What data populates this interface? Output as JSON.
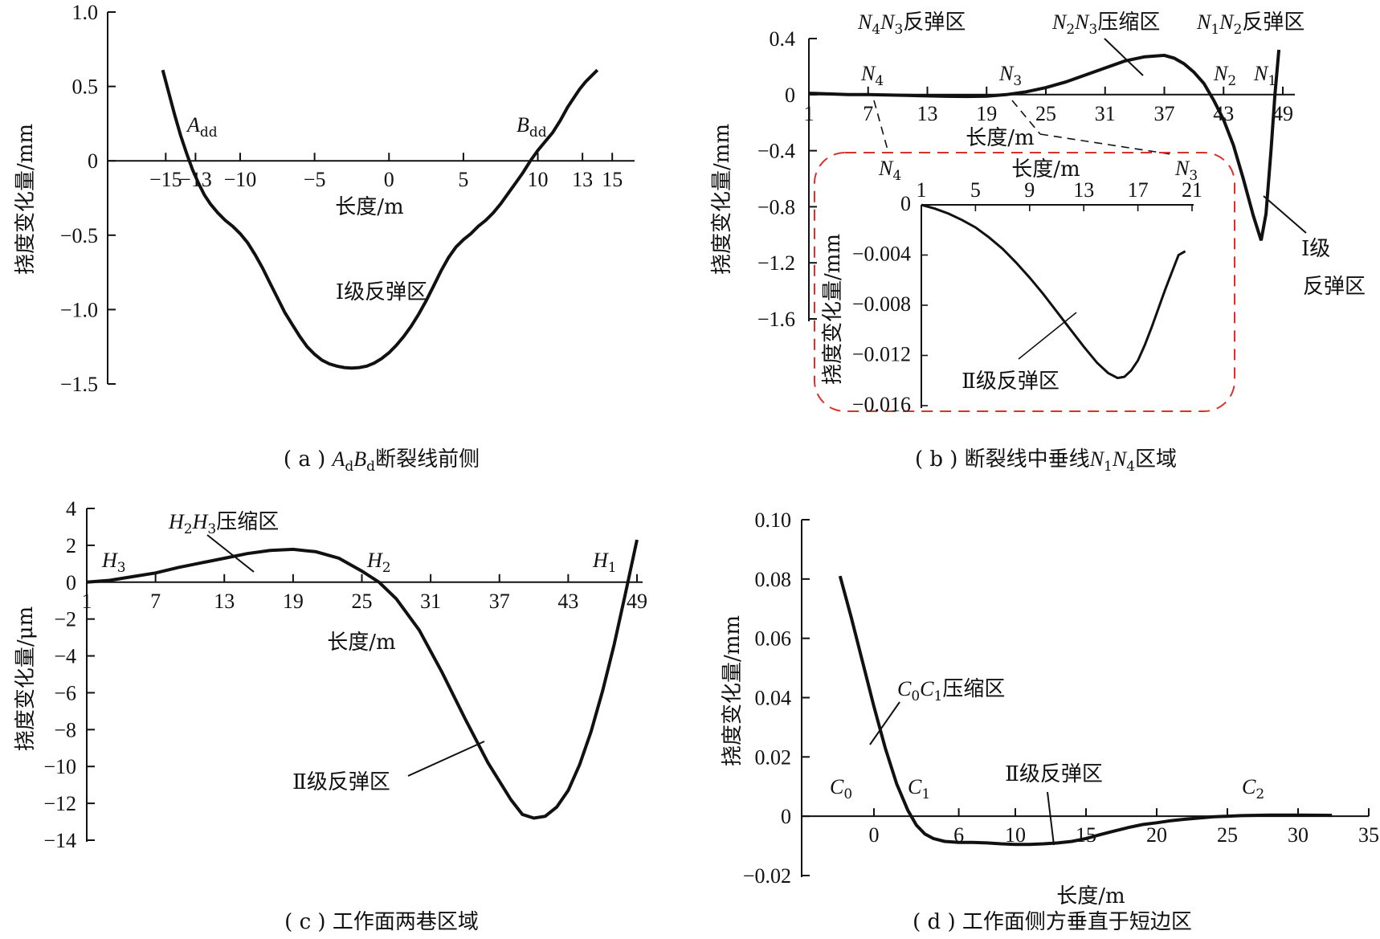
{
  "chart_data": [
    {
      "id": "a",
      "type": "line",
      "caption": "( a ) AdBd断裂线前侧",
      "xlabel": "长度/m",
      "ylabel": "挠度变化量/mm",
      "xticks": [
        -15,
        -13,
        -10,
        -5,
        0,
        5,
        10,
        13,
        15
      ],
      "yticks": [
        1.0,
        0.5,
        0,
        -0.5,
        -1.0,
        -1.5
      ],
      "ytick_labels": [
        "1.0",
        "0.5",
        "0",
        "−0.5",
        "−1.0",
        "−1.5"
      ],
      "xlim": [
        -17.5,
        16.5
      ],
      "ylim": [
        -1.5,
        1.0
      ],
      "series": [
        {
          "x": [
            -15.2,
            -14.8,
            -14.4,
            -14.0,
            -13.6,
            -13.2,
            -12.8,
            -12.4,
            -12.0,
            -11.5,
            -11.0,
            -10.5,
            -10.0,
            -9.5,
            -9.0,
            -8.5,
            -8.0,
            -7.5,
            -7.0,
            -6.5,
            -6.0,
            -5.5,
            -5.0,
            -4.5,
            -4.0,
            -3.5,
            -3.0,
            -2.5,
            -2.0,
            -1.5,
            -1.0,
            -0.5,
            0.0,
            0.5,
            1.0,
            1.5,
            2.0,
            2.5,
            3.0,
            3.5,
            4.0,
            4.5,
            5.0,
            5.5,
            6.0,
            6.5,
            7.0,
            7.5,
            8.0,
            8.5,
            9.0,
            9.5,
            10.0,
            10.5,
            11.0,
            11.5,
            12.0,
            12.4,
            12.8,
            13.2,
            13.6,
            14.0
          ],
          "y": [
            0.61,
            0.46,
            0.31,
            0.17,
            0.05,
            -0.06,
            -0.15,
            -0.23,
            -0.29,
            -0.35,
            -0.4,
            -0.44,
            -0.49,
            -0.55,
            -0.63,
            -0.72,
            -0.82,
            -0.92,
            -1.02,
            -1.1,
            -1.18,
            -1.25,
            -1.3,
            -1.34,
            -1.365,
            -1.38,
            -1.39,
            -1.393,
            -1.39,
            -1.38,
            -1.36,
            -1.33,
            -1.29,
            -1.24,
            -1.18,
            -1.11,
            -1.03,
            -0.94,
            -0.84,
            -0.74,
            -0.65,
            -0.58,
            -0.53,
            -0.49,
            -0.44,
            -0.4,
            -0.35,
            -0.29,
            -0.22,
            -0.15,
            -0.08,
            0.0,
            0.07,
            0.13,
            0.19,
            0.27,
            0.36,
            0.42,
            0.48,
            0.53,
            0.57,
            0.61
          ]
        }
      ],
      "annotations": [
        {
          "text": "A",
          "sub": "dd"
        },
        {
          "text": "B",
          "sub": "dd"
        },
        {
          "text": "Ⅰ级反弹区"
        }
      ]
    },
    {
      "id": "b",
      "type": "line",
      "caption": "( b ) 断裂线中垂线N1N4区域",
      "xlabel": "长度/m",
      "ylabel": "挠度变化量/mm",
      "xticks": [
        1,
        7,
        13,
        19,
        25,
        31,
        37,
        43,
        49
      ],
      "yticks": [
        0.4,
        0,
        -0.4,
        -0.8,
        -1.2,
        -1.6
      ],
      "ytick_labels": [
        "0.4",
        "0",
        "−0.4",
        "−0.8",
        "−1.2",
        "−1.6"
      ],
      "xlim": [
        1,
        49
      ],
      "ylim": [
        -1.6,
        0.4
      ],
      "series": [
        {
          "x": [
            1,
            3,
            5,
            7,
            9,
            11,
            13,
            15,
            17,
            19,
            21,
            23,
            25,
            27,
            29,
            31,
            33,
            35,
            37,
            38,
            39,
            40,
            41,
            42,
            43,
            44,
            45,
            46,
            46.8,
            47.3,
            47.8,
            48.2,
            48.6
          ],
          "y": [
            0.01,
            0.005,
            0.0,
            0.0,
            -0.003,
            -0.006,
            -0.009,
            -0.012,
            -0.013,
            -0.011,
            0.0,
            0.02,
            0.05,
            0.09,
            0.14,
            0.19,
            0.24,
            0.27,
            0.28,
            0.26,
            0.22,
            0.16,
            0.08,
            -0.04,
            -0.18,
            -0.36,
            -0.6,
            -0.86,
            -1.04,
            -0.85,
            -0.4,
            0.0,
            0.32
          ]
        }
      ],
      "inset": {
        "xlabel": "长度/m",
        "ylabel": "挠度变化量/mm",
        "xticks": [
          1,
          5,
          9,
          13,
          17,
          21
        ],
        "yticks": [
          0,
          -0.004,
          -0.008,
          -0.012,
          -0.016
        ],
        "ytick_labels": [
          "0",
          "−0.004",
          "−0.008",
          "−0.012",
          "−0.016"
        ],
        "xlim": [
          1,
          21
        ],
        "ylim": [
          -0.016,
          0
        ],
        "series": [
          {
            "x": [
              1,
              2,
              3,
              4,
              5,
              6,
              7,
              8,
              9,
              10,
              11,
              12,
              13,
              14,
              14.8,
              15.5,
              16,
              16.5,
              17,
              17.5,
              18,
              18.5,
              19,
              19.5,
              20,
              20.5
            ],
            "y": [
              0,
              -0.0003,
              -0.0007,
              -0.0012,
              -0.0018,
              -0.0026,
              -0.0035,
              -0.0046,
              -0.0058,
              -0.0071,
              -0.0085,
              -0.0099,
              -0.0113,
              -0.0126,
              -0.0134,
              -0.0138,
              -0.0137,
              -0.0132,
              -0.0124,
              -0.0112,
              -0.0098,
              -0.0083,
              -0.0068,
              -0.0054,
              -0.004,
              -0.0037
            ]
          }
        ],
        "annotations": [
          {
            "text": "Ⅱ级反弹区"
          }
        ]
      },
      "annotations": [
        {
          "text": "N4N3反弹区"
        },
        {
          "text": "N2N3压缩区"
        },
        {
          "text": "N1N2反弹区"
        },
        {
          "text": "Ⅰ级",
          "text2": "反弹区"
        }
      ],
      "point_labels": [
        "N4",
        "N3",
        "N2",
        "N1"
      ]
    },
    {
      "id": "c",
      "type": "line",
      "caption": "( c ) 工作面两巷区域",
      "xlabel": "长度/m",
      "ylabel": "挠度变化量/μm",
      "xticks": [
        1,
        7,
        13,
        19,
        25,
        31,
        37,
        43,
        49
      ],
      "yticks": [
        4,
        2,
        0,
        -2,
        -4,
        -6,
        -8,
        -10,
        -12,
        -14
      ],
      "ytick_labels": [
        "4",
        "2",
        "0",
        "−2",
        "−4",
        "−6",
        "−8",
        "−10",
        "−12",
        "−14"
      ],
      "xlim": [
        1,
        49
      ],
      "ylim": [
        -14,
        4
      ],
      "series": [
        {
          "x": [
            1,
            3,
            5,
            7,
            9,
            11,
            13,
            15,
            17,
            19,
            21,
            23,
            25,
            26.5,
            28,
            30,
            32,
            34,
            36,
            38,
            39,
            40,
            41,
            42,
            43,
            44,
            45,
            46,
            47,
            48,
            49
          ],
          "y": [
            0,
            0.1,
            0.3,
            0.5,
            0.8,
            1.05,
            1.3,
            1.55,
            1.72,
            1.78,
            1.65,
            1.3,
            0.6,
            0,
            -0.9,
            -2.6,
            -4.9,
            -7.4,
            -9.8,
            -11.8,
            -12.6,
            -12.8,
            -12.7,
            -12.2,
            -11.3,
            -9.9,
            -8.1,
            -5.9,
            -3.4,
            -0.6,
            2.3
          ]
        }
      ],
      "annotations": [
        {
          "text": "H2H3压缩区"
        },
        {
          "text": "Ⅱ级反弹区"
        }
      ],
      "point_labels": [
        "H3",
        "H2",
        "H1"
      ]
    },
    {
      "id": "d",
      "type": "line",
      "caption": "( d ) 工作面侧方垂直于短边区",
      "xlabel": "长度/m",
      "ylabel": "挠度变化量/mm",
      "xticks": [
        0,
        6,
        10,
        15,
        20,
        25,
        30,
        35
      ],
      "yticks": [
        0.1,
        0.08,
        0.06,
        0.04,
        0.02,
        0,
        -0.02
      ],
      "ytick_labels": [
        "0.10",
        "0.08",
        "0.06",
        "0.04",
        "0.02",
        "0",
        "−0.02"
      ],
      "xlim": [
        -5,
        35
      ],
      "ylim": [
        -0.02,
        0.1
      ],
      "series": [
        {
          "x": [
            -2.4,
            -1.6,
            -0.8,
            0.0,
            0.8,
            1.6,
            2.4,
            3.0,
            3.6,
            4.2,
            5.0,
            6.0,
            7.0,
            8.0,
            9.0,
            10.0,
            11.0,
            12.0,
            13.0,
            14.0,
            15.0,
            16.0,
            17.0,
            18.0,
            19.0,
            20.0,
            21.0,
            22.0,
            24.0,
            26.0,
            28.0,
            30.0,
            32.4
          ],
          "y": [
            0.081,
            0.067,
            0.052,
            0.037,
            0.023,
            0.011,
            0.002,
            -0.003,
            -0.006,
            -0.0075,
            -0.0085,
            -0.0088,
            -0.0088,
            -0.009,
            -0.0093,
            -0.0095,
            -0.0095,
            -0.0093,
            -0.009,
            -0.0085,
            -0.0075,
            -0.0062,
            -0.005,
            -0.0038,
            -0.0028,
            -0.0022,
            -0.0015,
            -0.001,
            -0.0002,
            0.0002,
            0.0004,
            0.0004,
            0.0003
          ]
        }
      ],
      "annotations": [
        {
          "text": "C0C1压缩区"
        },
        {
          "text": "Ⅱ级反弹区"
        }
      ],
      "point_labels": [
        "C0",
        "C1",
        "C2"
      ]
    }
  ]
}
